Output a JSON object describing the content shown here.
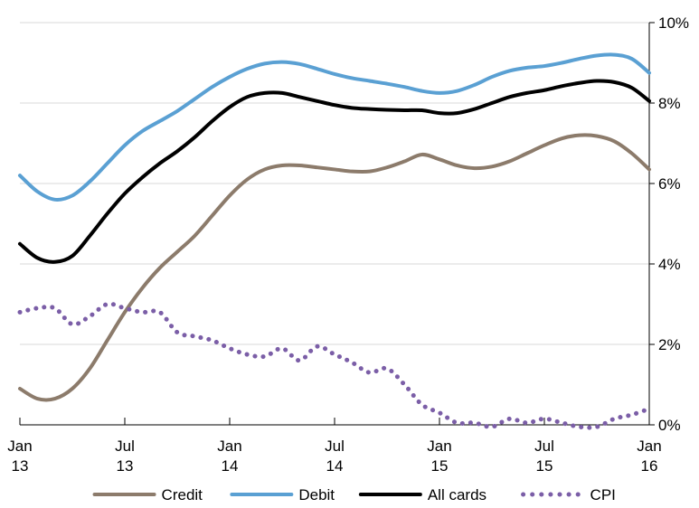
{
  "chart_data": {
    "type": "line",
    "title": "",
    "xlabel": "",
    "ylabel": "",
    "x_range": [
      "2013-01",
      "2016-01"
    ],
    "ylim": [
      0,
      10
    ],
    "y_ticks": [
      {
        "value": 0,
        "label": "0%"
      },
      {
        "value": 2,
        "label": "2%"
      },
      {
        "value": 4,
        "label": "4%"
      },
      {
        "value": 6,
        "label": "6%"
      },
      {
        "value": 8,
        "label": "8%"
      },
      {
        "value": 10,
        "label": "10%"
      }
    ],
    "x_ticks": [
      {
        "x": "2013-01",
        "line1": "Jan",
        "line2": "13"
      },
      {
        "x": "2013-07",
        "line1": "Jul",
        "line2": "13"
      },
      {
        "x": "2014-01",
        "line1": "Jan",
        "line2": "14"
      },
      {
        "x": "2014-07",
        "line1": "Jul",
        "line2": "14"
      },
      {
        "x": "2015-01",
        "line1": "Jan",
        "line2": "15"
      },
      {
        "x": "2015-07",
        "line1": "Jul",
        "line2": "15"
      },
      {
        "x": "2016-01",
        "line1": "Jan",
        "line2": "16"
      }
    ],
    "y_axis_side": "right",
    "grid": "horizontal",
    "legend_position": "bottom",
    "series": [
      {
        "name": "Credit",
        "color": "#8c7b6b",
        "style": "solid",
        "points": [
          [
            "2013-01",
            0.9
          ],
          [
            "2013-02",
            0.65
          ],
          [
            "2013-03",
            0.65
          ],
          [
            "2013-04",
            0.9
          ],
          [
            "2013-05",
            1.4
          ],
          [
            "2013-06",
            2.1
          ],
          [
            "2013-07",
            2.8
          ],
          [
            "2013-08",
            3.4
          ],
          [
            "2013-09",
            3.9
          ],
          [
            "2013-10",
            4.3
          ],
          [
            "2013-11",
            4.7
          ],
          [
            "2013-12",
            5.2
          ],
          [
            "2014-01",
            5.7
          ],
          [
            "2014-02",
            6.1
          ],
          [
            "2014-03",
            6.35
          ],
          [
            "2014-04",
            6.45
          ],
          [
            "2014-05",
            6.45
          ],
          [
            "2014-06",
            6.4
          ],
          [
            "2014-07",
            6.35
          ],
          [
            "2014-08",
            6.3
          ],
          [
            "2014-09",
            6.3
          ],
          [
            "2014-10",
            6.4
          ],
          [
            "2014-11",
            6.55
          ],
          [
            "2014-12",
            6.72
          ],
          [
            "2015-01",
            6.6
          ],
          [
            "2015-02",
            6.45
          ],
          [
            "2015-03",
            6.38
          ],
          [
            "2015-04",
            6.42
          ],
          [
            "2015-05",
            6.55
          ],
          [
            "2015-06",
            6.75
          ],
          [
            "2015-07",
            6.95
          ],
          [
            "2015-08",
            7.12
          ],
          [
            "2015-09",
            7.2
          ],
          [
            "2015-10",
            7.18
          ],
          [
            "2015-11",
            7.05
          ],
          [
            "2015-12",
            6.75
          ],
          [
            "2016-01",
            6.35
          ]
        ]
      },
      {
        "name": "Debit",
        "color": "#5aa0d3",
        "style": "solid",
        "points": [
          [
            "2013-01",
            6.2
          ],
          [
            "2013-02",
            5.8
          ],
          [
            "2013-03",
            5.6
          ],
          [
            "2013-04",
            5.7
          ],
          [
            "2013-05",
            6.05
          ],
          [
            "2013-06",
            6.5
          ],
          [
            "2013-07",
            6.95
          ],
          [
            "2013-08",
            7.3
          ],
          [
            "2013-09",
            7.55
          ],
          [
            "2013-10",
            7.8
          ],
          [
            "2013-11",
            8.1
          ],
          [
            "2013-12",
            8.4
          ],
          [
            "2014-01",
            8.65
          ],
          [
            "2014-02",
            8.85
          ],
          [
            "2014-03",
            8.98
          ],
          [
            "2014-04",
            9.02
          ],
          [
            "2014-05",
            8.97
          ],
          [
            "2014-06",
            8.85
          ],
          [
            "2014-07",
            8.72
          ],
          [
            "2014-08",
            8.62
          ],
          [
            "2014-09",
            8.55
          ],
          [
            "2014-10",
            8.48
          ],
          [
            "2014-11",
            8.4
          ],
          [
            "2014-12",
            8.3
          ],
          [
            "2015-01",
            8.25
          ],
          [
            "2015-02",
            8.3
          ],
          [
            "2015-03",
            8.45
          ],
          [
            "2015-04",
            8.65
          ],
          [
            "2015-05",
            8.8
          ],
          [
            "2015-06",
            8.88
          ],
          [
            "2015-07",
            8.92
          ],
          [
            "2015-08",
            9.0
          ],
          [
            "2015-09",
            9.1
          ],
          [
            "2015-10",
            9.18
          ],
          [
            "2015-11",
            9.2
          ],
          [
            "2015-12",
            9.1
          ],
          [
            "2016-01",
            8.75
          ]
        ]
      },
      {
        "name": "All cards",
        "color": "#000000",
        "style": "solid",
        "points": [
          [
            "2013-01",
            4.5
          ],
          [
            "2013-02",
            4.15
          ],
          [
            "2013-03",
            4.05
          ],
          [
            "2013-04",
            4.2
          ],
          [
            "2013-05",
            4.7
          ],
          [
            "2013-06",
            5.25
          ],
          [
            "2013-07",
            5.75
          ],
          [
            "2013-08",
            6.15
          ],
          [
            "2013-09",
            6.5
          ],
          [
            "2013-10",
            6.8
          ],
          [
            "2013-11",
            7.15
          ],
          [
            "2013-12",
            7.55
          ],
          [
            "2014-01",
            7.9
          ],
          [
            "2014-02",
            8.15
          ],
          [
            "2014-03",
            8.25
          ],
          [
            "2014-04",
            8.25
          ],
          [
            "2014-05",
            8.15
          ],
          [
            "2014-06",
            8.05
          ],
          [
            "2014-07",
            7.95
          ],
          [
            "2014-08",
            7.88
          ],
          [
            "2014-09",
            7.85
          ],
          [
            "2014-10",
            7.83
          ],
          [
            "2014-11",
            7.82
          ],
          [
            "2014-12",
            7.82
          ],
          [
            "2015-01",
            7.75
          ],
          [
            "2015-02",
            7.75
          ],
          [
            "2015-03",
            7.85
          ],
          [
            "2015-04",
            8.0
          ],
          [
            "2015-05",
            8.15
          ],
          [
            "2015-06",
            8.25
          ],
          [
            "2015-07",
            8.32
          ],
          [
            "2015-08",
            8.42
          ],
          [
            "2015-09",
            8.5
          ],
          [
            "2015-10",
            8.55
          ],
          [
            "2015-11",
            8.52
          ],
          [
            "2015-12",
            8.38
          ],
          [
            "2016-01",
            8.05
          ]
        ]
      },
      {
        "name": "CPI",
        "color": "#7b5ea7",
        "style": "dotted",
        "points": [
          [
            "2013-01",
            2.8
          ],
          [
            "2013-02",
            2.9
          ],
          [
            "2013-03",
            2.9
          ],
          [
            "2013-04",
            2.5
          ],
          [
            "2013-05",
            2.7
          ],
          [
            "2013-06",
            3.0
          ],
          [
            "2013-07",
            2.9
          ],
          [
            "2013-08",
            2.8
          ],
          [
            "2013-09",
            2.8
          ],
          [
            "2013-10",
            2.3
          ],
          [
            "2013-11",
            2.2
          ],
          [
            "2013-12",
            2.1
          ],
          [
            "2014-01",
            1.9
          ],
          [
            "2014-02",
            1.75
          ],
          [
            "2014-03",
            1.7
          ],
          [
            "2014-04",
            1.9
          ],
          [
            "2014-05",
            1.6
          ],
          [
            "2014-06",
            1.95
          ],
          [
            "2014-07",
            1.75
          ],
          [
            "2014-08",
            1.55
          ],
          [
            "2014-09",
            1.3
          ],
          [
            "2014-10",
            1.4
          ],
          [
            "2014-11",
            1.0
          ],
          [
            "2014-12",
            0.5
          ],
          [
            "2015-01",
            0.3
          ],
          [
            "2015-02",
            0.05
          ],
          [
            "2015-03",
            0.05
          ],
          [
            "2015-04",
            -0.05
          ],
          [
            "2015-05",
            0.15
          ],
          [
            "2015-06",
            0.05
          ],
          [
            "2015-07",
            0.15
          ],
          [
            "2015-08",
            0.05
          ],
          [
            "2015-09",
            -0.05
          ],
          [
            "2015-10",
            -0.05
          ],
          [
            "2015-11",
            0.15
          ],
          [
            "2015-12",
            0.25
          ],
          [
            "2016-01",
            0.4
          ]
        ]
      }
    ]
  }
}
